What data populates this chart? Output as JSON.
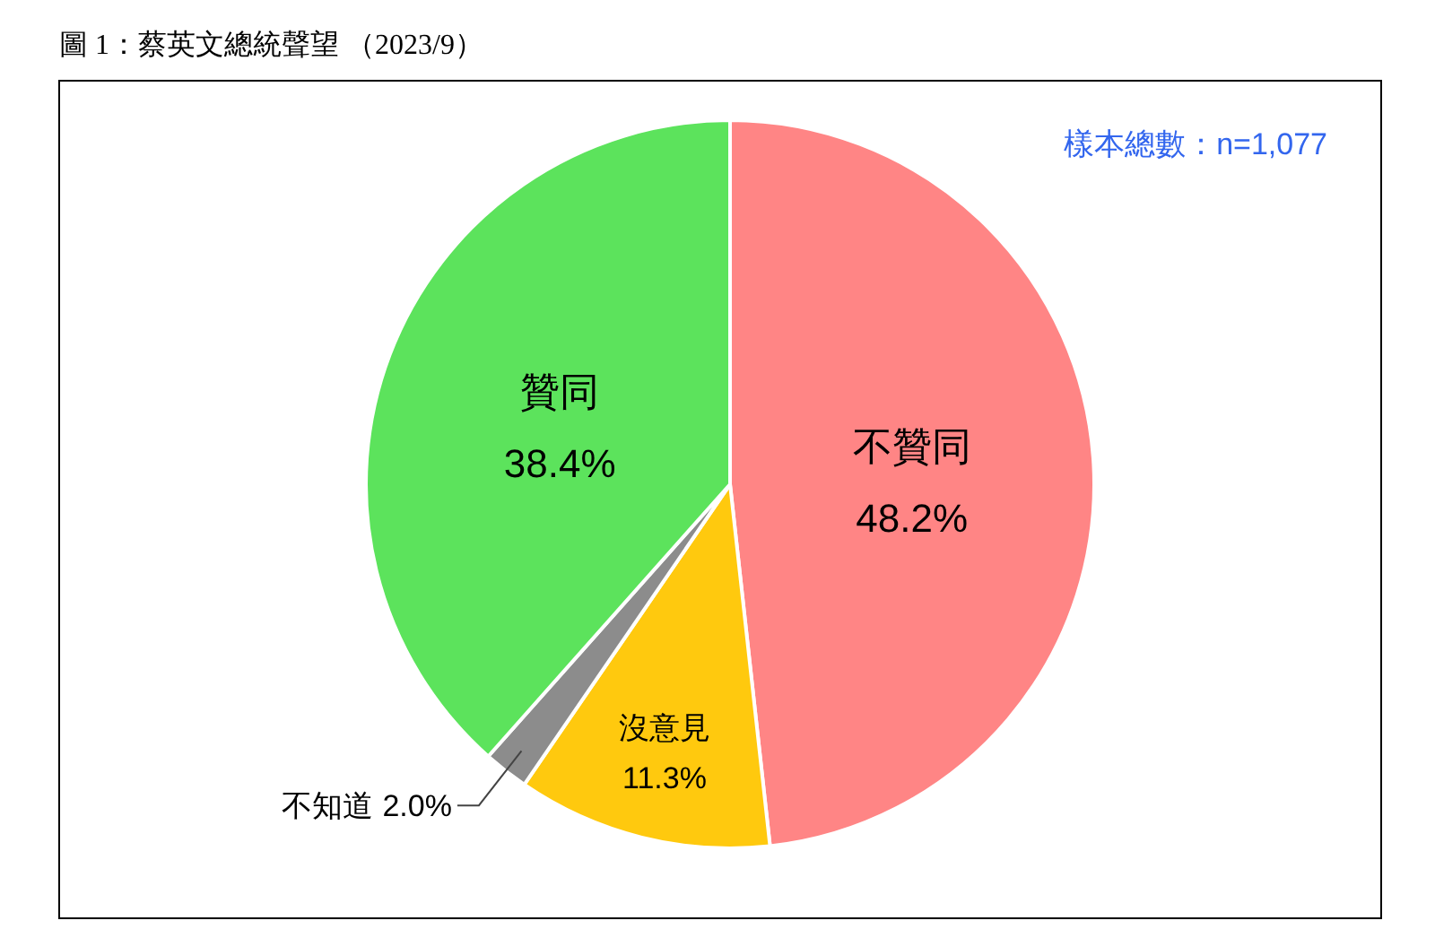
{
  "chart_data": {
    "type": "pie",
    "title": "圖 1：蔡英文總統聲望 （2023/9）",
    "annotations": [
      "樣本總數：n=1,077"
    ],
    "categories": [
      "不贊同",
      "沒意見",
      "不知道",
      "贊同"
    ],
    "values": [
      48.2,
      11.3,
      2.0,
      38.4
    ],
    "value_labels": [
      "48.2%",
      "11.3%",
      "2.0%",
      "38.4%"
    ],
    "colors": [
      "#ff8585",
      "#ffc90e",
      "#8c8c8c",
      "#5ce35c"
    ]
  }
}
